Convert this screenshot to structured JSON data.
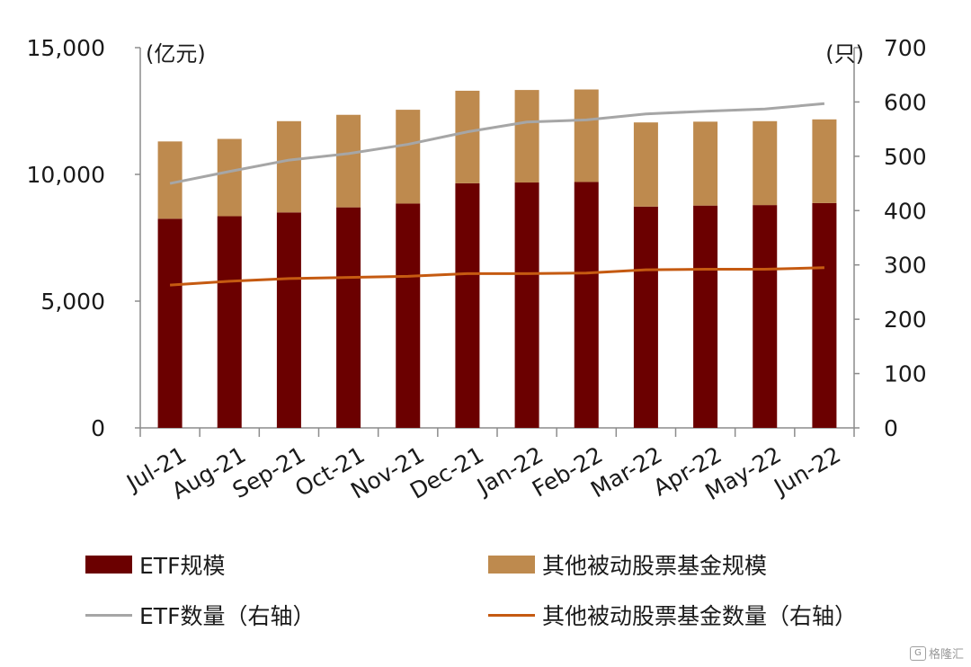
{
  "chart_data": {
    "type": "bar",
    "categories": [
      "Jul-21",
      "Aug-21",
      "Sep-21",
      "Oct-21",
      "Nov-21",
      "Dec-21",
      "Jan-22",
      "Feb-22",
      "Mar-22",
      "Apr-22",
      "May-22",
      "Jun-22"
    ],
    "left_axis": {
      "unit_label": "(亿元)",
      "range": [
        0,
        15000
      ],
      "ticks": [
        "0",
        "5,000",
        "10,000",
        "15,000"
      ],
      "tick_values": [
        0,
        5000,
        10000,
        15000
      ]
    },
    "right_axis": {
      "unit_label": "(只)",
      "range": [
        0,
        700
      ],
      "ticks": [
        "0",
        "100",
        "200",
        "300",
        "400",
        "500",
        "600",
        "700"
      ],
      "tick_values": [
        0,
        100,
        200,
        300,
        400,
        500,
        600,
        700
      ]
    },
    "stacked": true,
    "series": [
      {
        "name": "ETF规模",
        "type": "bar",
        "axis": "left",
        "color": "#6b0000",
        "values": [
          8250,
          8350,
          8500,
          8700,
          8850,
          9650,
          9680,
          9700,
          8730,
          8770,
          8790,
          8870
        ]
      },
      {
        "name": "其他被动股票基金规模",
        "type": "bar",
        "axis": "left",
        "color": "#be8a4e",
        "values": [
          3050,
          3050,
          3600,
          3650,
          3700,
          3650,
          3650,
          3650,
          3320,
          3310,
          3310,
          3300
        ]
      },
      {
        "name": "ETF数量（右轴）",
        "type": "line",
        "axis": "right",
        "color": "#a6a6a6",
        "values": [
          450,
          472,
          493,
          505,
          522,
          545,
          563,
          567,
          578,
          583,
          587,
          597
        ]
      },
      {
        "name": "其他被动股票基金数量（右轴）",
        "type": "line",
        "axis": "right",
        "color": "#c55a11",
        "values": [
          263,
          270,
          275,
          277,
          279,
          284,
          284,
          285,
          291,
          292,
          292,
          295
        ]
      }
    ],
    "legend": "bottom",
    "grid": false
  },
  "watermark": {
    "icon": "gelonghui-logo-icon",
    "text": "格隆汇"
  }
}
